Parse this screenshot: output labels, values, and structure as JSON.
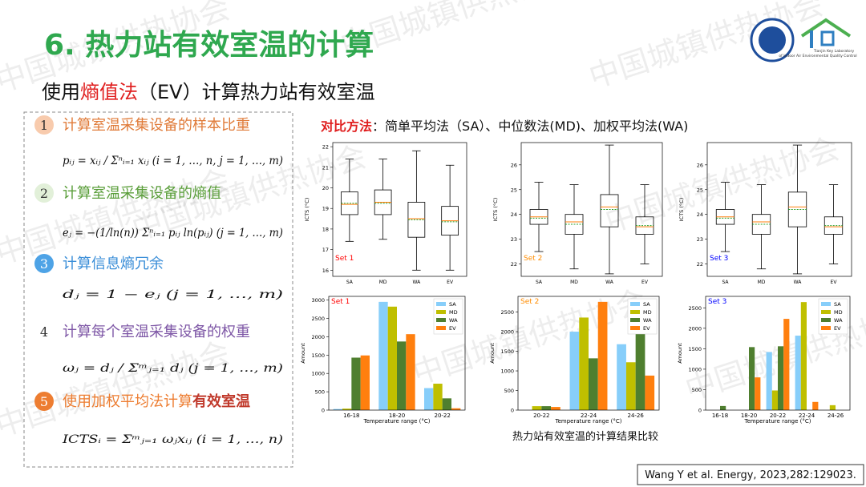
{
  "header": {
    "title": "6. 热力站有效室温的计算",
    "subtitle": [
      "使用",
      "熵值法",
      "（EV）计算热力站有效室温"
    ],
    "logo_text": [
      "Tianjin Key Laboratory",
      "of Indoor Air Environmental Quality Control"
    ]
  },
  "watermark": "中国城镇供热协会",
  "steps": [
    {
      "number": "1",
      "text": "计算室温采集设备的样本比重",
      "formula": "pᵢⱼ = xᵢⱼ / Σⁿᵢ₌₁ xᵢⱼ (i = 1, …, n, j = 1, …, m)"
    },
    {
      "number": "2",
      "text": "计算室温采集设备的熵值",
      "formula": "eⱼ = −(1/ln(n)) Σⁿᵢ₌₁ pᵢⱼ ln(pᵢⱼ) (j = 1, …, m)"
    },
    {
      "number": "3",
      "text": "计算信息熵冗余",
      "formula": "dⱼ = 1 − eⱼ (j = 1, …, m)"
    },
    {
      "number": "4",
      "text": "计算每个室温采集设备的权重",
      "formula": "ωⱼ = dⱼ / Σᵐⱼ₌₁ dⱼ (j = 1, …, m)"
    },
    {
      "number": "5",
      "text": "使用加权平均法计算",
      "emphasis": "有效室温",
      "formula": "ICTSᵢ = Σᵐⱼ₌₁ ωⱼxᵢⱼ (i = 1, …, n)"
    }
  ],
  "comparison": {
    "label": "对比方法",
    "text": "：简单平均法（SA）、中位数法(MD)、加权平均法(WA)"
  },
  "chart_data": [
    {
      "type": "boxplot",
      "annotation": "Set 1",
      "annotation_color": "#ff0000",
      "y_label": "ICTS (°C)",
      "categories": [
        "SA",
        "MD",
        "WA",
        "EV"
      ],
      "median_color": "#ff7f0e",
      "mean_color": "#2ca02c",
      "boxes": [
        {
          "whisker_low": 17.4,
          "q1": 18.7,
          "median": 19.2,
          "q3": 19.8,
          "whisker_high": 21.4,
          "mean": 19.25
        },
        {
          "whisker_low": 17.5,
          "q1": 18.7,
          "median": 19.3,
          "q3": 19.9,
          "whisker_high": 21.4,
          "mean": 19.25
        },
        {
          "whisker_low": 16.0,
          "q1": 17.6,
          "median": 18.5,
          "q3": 19.3,
          "whisker_high": 21.8,
          "mean": 18.45
        },
        {
          "whisker_low": 16.0,
          "q1": 17.7,
          "median": 18.4,
          "q3": 19.1,
          "whisker_high": 21.1,
          "mean": 18.35
        }
      ],
      "ylim": [
        15.7,
        22.2
      ],
      "yticks": [
        16,
        17,
        18,
        19,
        20,
        21,
        22
      ]
    },
    {
      "type": "boxplot",
      "annotation": "Set 2",
      "annotation_color": "#ff8c00",
      "y_label": "ICTS (°C)",
      "categories": [
        "SA",
        "MD",
        "WA",
        "EV"
      ],
      "median_color": "#ff7f0e",
      "mean_color": "#2ca02c",
      "boxes": [
        {
          "whisker_low": 22.5,
          "q1": 23.6,
          "median": 23.9,
          "q3": 24.2,
          "whisker_high": 25.3,
          "mean": 23.85
        },
        {
          "whisker_low": 21.8,
          "q1": 23.2,
          "median": 23.7,
          "q3": 24.0,
          "whisker_high": 25.2,
          "mean": 23.6
        },
        {
          "whisker_low": 21.6,
          "q1": 23.5,
          "median": 24.3,
          "q3": 24.8,
          "whisker_high": 26.8,
          "mean": 24.2
        },
        {
          "whisker_low": 22.0,
          "q1": 23.2,
          "median": 23.5,
          "q3": 23.9,
          "whisker_high": 25.2,
          "mean": 23.55
        }
      ],
      "ylim": [
        21.5,
        26.9
      ],
      "yticks": [
        22,
        23,
        24,
        25,
        26
      ]
    },
    {
      "type": "boxplot",
      "annotation": "Set 3",
      "annotation_color": "#0000ff",
      "y_label": "ICTS (°C)",
      "categories": [
        "SA",
        "MD",
        "WA",
        "EV"
      ],
      "median_color": "#ff7f0e",
      "mean_color": "#2ca02c",
      "boxes": [
        {
          "whisker_low": 22.5,
          "q1": 23.6,
          "median": 23.9,
          "q3": 24.2,
          "whisker_high": 25.3,
          "mean": 23.85
        },
        {
          "whisker_low": 21.8,
          "q1": 23.2,
          "median": 23.7,
          "q3": 24.0,
          "whisker_high": 25.2,
          "mean": 23.6
        },
        {
          "whisker_low": 21.6,
          "q1": 23.5,
          "median": 24.3,
          "q3": 24.9,
          "whisker_high": 26.8,
          "mean": 24.2
        },
        {
          "whisker_low": 22.0,
          "q1": 23.2,
          "median": 23.5,
          "q3": 23.9,
          "whisker_high": 25.2,
          "mean": 23.55
        }
      ],
      "ylim": [
        21.5,
        26.9
      ],
      "yticks": [
        22,
        23,
        24,
        25,
        26
      ]
    },
    {
      "type": "bar",
      "annotation": "Set 1",
      "annotation_color": "#ff0000",
      "x_label": "Temperature range (°C)",
      "y_label": "Amount",
      "legend": "upper right",
      "categories": [
        "16-18",
        "18-20",
        "20-22"
      ],
      "series": [
        {
          "name": "SA",
          "color": "#87cefa",
          "values": [
            30,
            2950,
            600
          ]
        },
        {
          "name": "MD",
          "color": "#bfbf00",
          "values": [
            40,
            2820,
            720
          ]
        },
        {
          "name": "WA",
          "color": "#4f7f2f",
          "values": [
            1430,
            1870,
            320
          ]
        },
        {
          "name": "EV",
          "color": "#ff7f0e",
          "values": [
            1490,
            2070,
            50
          ]
        }
      ],
      "ylim": [
        0,
        3100
      ],
      "yticks": [
        0,
        500,
        1000,
        1500,
        2000,
        2500,
        3000
      ]
    },
    {
      "type": "bar",
      "annotation": "Set 2",
      "annotation_color": "#ff8c00",
      "x_label": "Temperature range (°C)",
      "y_label": "Amount",
      "legend": "upper right",
      "categories": [
        "20-22",
        "22-24",
        "24-26"
      ],
      "series": [
        {
          "name": "SA",
          "color": "#87cefa",
          "values": [
            0,
            2000,
            1680
          ]
        },
        {
          "name": "MD",
          "color": "#bfbf00",
          "values": [
            100,
            2360,
            1220
          ]
        },
        {
          "name": "WA",
          "color": "#4f7f2f",
          "values": [
            100,
            1320,
            2100
          ]
        },
        {
          "name": "EV",
          "color": "#ff7f0e",
          "values": [
            80,
            2760,
            880
          ]
        }
      ],
      "ylim": [
        0,
        2900
      ],
      "yticks": [
        0,
        500,
        1000,
        1500,
        2000,
        2500
      ]
    },
    {
      "type": "bar",
      "annotation": "Set 3",
      "annotation_color": "#0000ff",
      "x_label": "Temperature range (°C)",
      "y_label": "Amount",
      "legend": "upper right",
      "categories": [
        "16-18",
        "18-20",
        "20-22",
        "22-24",
        "24-26"
      ],
      "series": [
        {
          "name": "SA",
          "color": "#87cefa",
          "values": [
            0,
            0,
            1420,
            1820,
            0
          ]
        },
        {
          "name": "MD",
          "color": "#bfbf00",
          "values": [
            0,
            0,
            480,
            2640,
            120
          ]
        },
        {
          "name": "WA",
          "color": "#4f7f2f",
          "values": [
            100,
            1540,
            1560,
            0,
            0
          ]
        },
        {
          "name": "EV",
          "color": "#ff7f0e",
          "values": [
            0,
            800,
            2230,
            200,
            0
          ]
        }
      ],
      "ylim": [
        0,
        2780
      ],
      "yticks": [
        0,
        500,
        1000,
        1500,
        2000,
        2500
      ]
    }
  ],
  "caption": "热力站有效室温的计算结果比较",
  "citation": "Wang Y et al. Energy, 2023,282:129023."
}
